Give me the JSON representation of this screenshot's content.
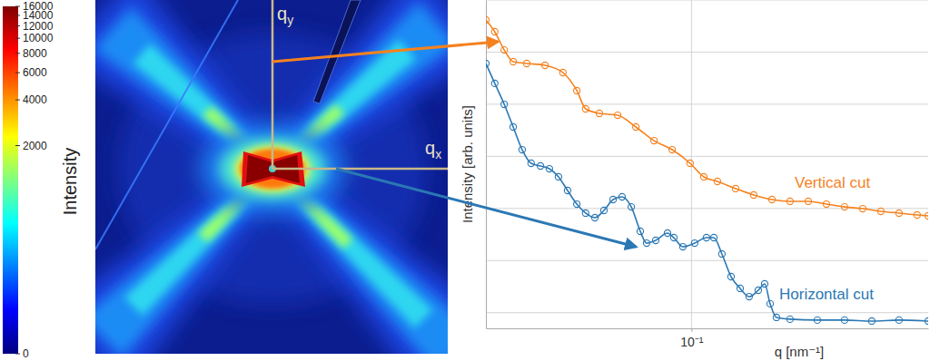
{
  "chart_data": [
    {
      "type": "image",
      "axis_labels": {
        "x": {
          "text": "q",
          "subscript": "x"
        },
        "y": {
          "text": "q",
          "subscript": "y"
        }
      },
      "colorbar": {
        "label": "Intensity",
        "range": [
          0,
          16000
        ],
        "ticks": [
          0,
          2000,
          4000,
          6000,
          8000,
          10000,
          12000,
          14000,
          16000
        ]
      }
    },
    {
      "type": "line",
      "x_label": "q [nm⁻¹]",
      "y_label": "Intensity [arb. units]",
      "log": true,
      "grid": true,
      "tick_labels": "x",
      "marker": "open-circle",
      "xlim": [
        0.03,
        0.4
      ],
      "ylim": [
        0.5,
        1000000
      ],
      "xticks": [
        {
          "value": 0.1,
          "label": "10⁻¹"
        }
      ],
      "yticks": [
        1,
        10,
        100,
        1000,
        10000,
        100000,
        1000000
      ],
      "series": [
        {
          "name": "Vertical cut",
          "color": "#f5821f",
          "x": [
            0.03,
            0.0316,
            0.0334,
            0.0352,
            0.0381,
            0.0424,
            0.0471,
            0.0511,
            0.0538,
            0.0583,
            0.0649,
            0.0722,
            0.0803,
            0.0893,
            0.0992,
            0.1075,
            0.1164,
            0.1295,
            0.144,
            0.1602,
            0.1781,
            0.1982,
            0.2204,
            0.2451,
            0.2726,
            0.3032,
            0.3372,
            0.375,
            0.4
          ],
          "values": [
            414000,
            246000,
            110000,
            65500,
            60500,
            55800,
            40500,
            18200,
            8150,
            6670,
            6150,
            3660,
            2000,
            1340,
            736,
            404,
            330,
            240,
            181,
            148,
            137,
            137,
            121,
            107,
            99,
            87.9,
            81.3,
            75,
            72
          ]
        },
        {
          "name": "Horizontal cut",
          "color": "#2b78b4",
          "x": [
            0.03,
            0.0316,
            0.0334,
            0.0352,
            0.0371,
            0.0391,
            0.0413,
            0.0435,
            0.0459,
            0.0484,
            0.0511,
            0.0538,
            0.0568,
            0.0599,
            0.0632,
            0.0666,
            0.0703,
            0.0741,
            0.0769,
            0.0811,
            0.0869,
            0.0902,
            0.0951,
            0.1019,
            0.1092,
            0.114,
            0.1195,
            0.1261,
            0.133,
            0.1402,
            0.1479,
            0.1535,
            0.1585,
            0.1645,
            0.1781,
            0.209,
            0.2451,
            0.2875,
            0.3372,
            0.4
          ],
          "values": [
            60500,
            25100,
            9950,
            3660,
            1340,
            736,
            653,
            578,
            404,
            221,
            121,
            81.3,
            66.5,
            91.6,
            148,
            167,
            107,
            36.4,
            21.6,
            24.4,
            33.6,
            27.5,
            18.4,
            21.6,
            27.5,
            27.5,
            13.4,
            4.91,
            2.92,
            2.03,
            2.69,
            3.56,
            1.48,
            0.81,
            0.75,
            0.72,
            0.72,
            0.69,
            0.72,
            0.69
          ]
        }
      ]
    }
  ]
}
